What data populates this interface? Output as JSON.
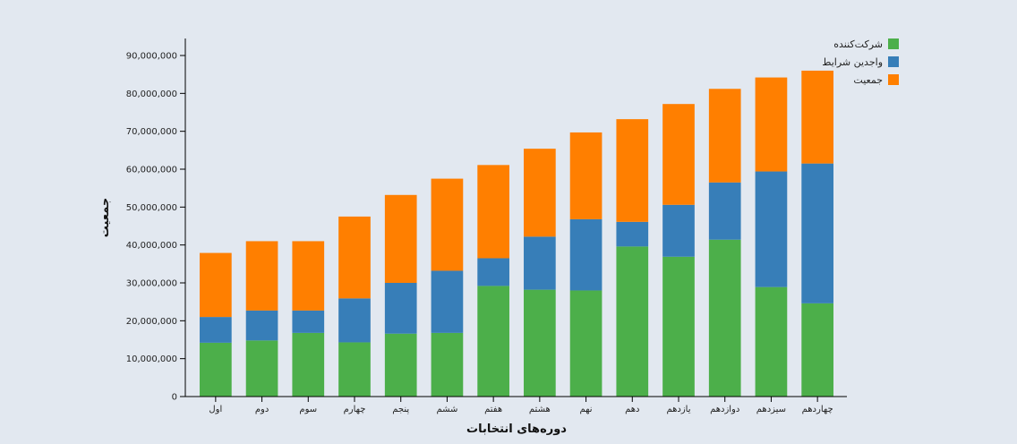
{
  "chart_data": {
    "type": "bar",
    "stacked": true,
    "xlabel": "دوره‌های انتخابات",
    "ylabel": "جمعیت",
    "ylim": [
      0,
      90000000
    ],
    "yticks": [
      0,
      10000000,
      20000000,
      30000000,
      40000000,
      50000000,
      60000000,
      70000000,
      80000000,
      90000000
    ],
    "ytick_labels": [
      "0",
      "10,000,000",
      "20,000,000",
      "30,000,000",
      "40,000,000",
      "50,000,000",
      "60,000,000",
      "70,000,000",
      "80,000,000",
      "90,000,000"
    ],
    "categories": [
      "اول",
      "دوم",
      "سوم",
      "چهارم",
      "پنجم",
      "ششم",
      "هفتم",
      "هشتم",
      "نهم",
      "دهم",
      "یازدهم",
      "دوازدهم",
      "سیزدهم",
      "چهاردهم"
    ],
    "legend_position": "top-right",
    "series": [
      {
        "name": "شرکت‌کننده",
        "color": "#4caf4a",
        "values": [
          14200000,
          14800000,
          16800000,
          14300000,
          16600000,
          16800000,
          29200000,
          28200000,
          28000000,
          39600000,
          36900000,
          41400000,
          28900000,
          24600000
        ]
      },
      {
        "name": "واجدین شرایط",
        "color": "#377eb8",
        "values": [
          6800000,
          7900000,
          5900000,
          11600000,
          13400000,
          16400000,
          7300000,
          14000000,
          18800000,
          6500000,
          13700000,
          15100000,
          30500000,
          36900000
        ]
      },
      {
        "name": "جمعیت",
        "color": "#ff7f00",
        "values": [
          16900000,
          18300000,
          18300000,
          21600000,
          23200000,
          24300000,
          24600000,
          23200000,
          22900000,
          27100000,
          26600000,
          24700000,
          24800000,
          24500000
        ]
      }
    ]
  }
}
